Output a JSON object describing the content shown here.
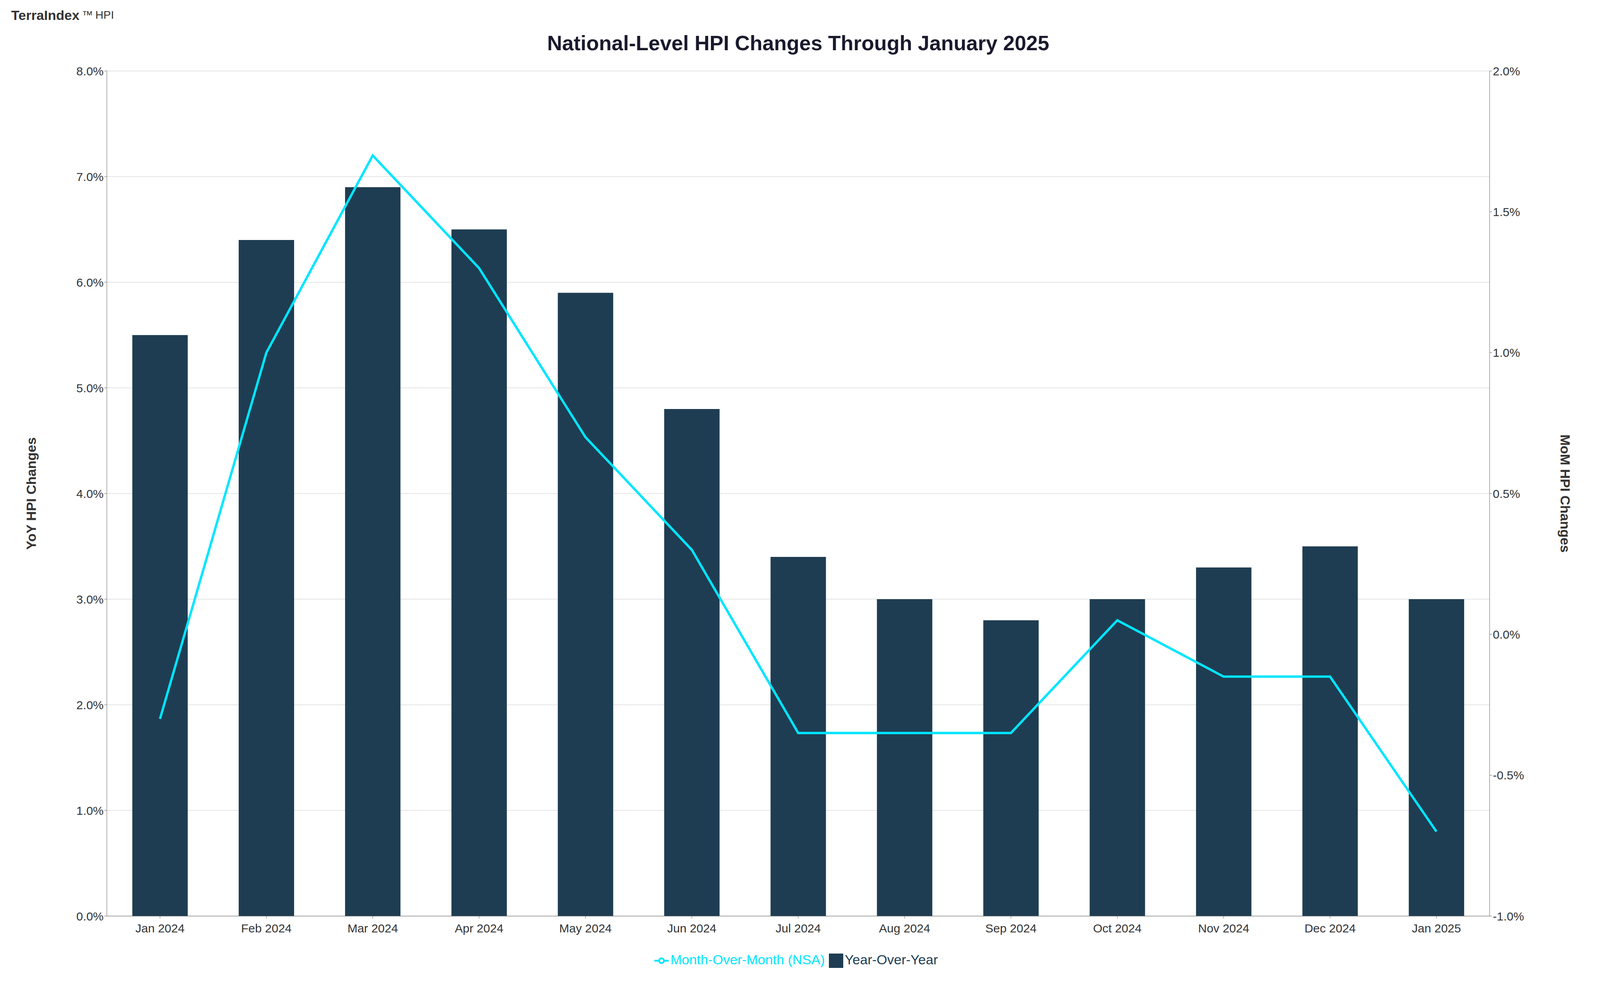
{
  "chart_data": {
    "type": "bar",
    "title": "National-Level HPI Changes Through January 2025",
    "annotations": [
      "TerraIndex",
      "™",
      "HPI"
    ],
    "y_label": "YoY HPI Changes",
    "y2_label": "MoM HPI Changes",
    "categories": [
      "Jan 2024",
      "Feb 2024",
      "Mar 2024",
      "Apr 2024",
      "May 2024",
      "Jun 2024",
      "Jul 2024",
      "Aug 2024",
      "Sep 2024",
      "Oct 2024",
      "Nov 2024",
      "Dec 2024",
      "Jan 2025"
    ],
    "series": [
      {
        "name": "Year-Over-Year",
        "type": "bar",
        "color": "#1e3d52",
        "values": [
          0.055,
          0.064,
          0.069,
          0.065,
          0.059,
          0.048,
          0.034,
          0.03,
          0.028,
          0.03,
          0.033,
          0.035,
          0.03
        ]
      },
      {
        "name": "Month-Over-Month (NSA)",
        "type": "line",
        "color": "#00e5ff",
        "axis": "y2",
        "values": [
          -0.003,
          0.01,
          0.017,
          0.013,
          0.007,
          0.003,
          -0.0035,
          -0.0035,
          -0.0035,
          0.0005,
          -0.0015,
          -0.0015,
          -0.007
        ]
      }
    ],
    "ylim": [
      0.0,
      0.08
    ],
    "yticks": [
      {
        "value": 0.0,
        "label": "0.0%"
      },
      {
        "value": 0.01,
        "label": "1.0%"
      },
      {
        "value": 0.02,
        "label": "2.0%"
      },
      {
        "value": 0.03,
        "label": "3.0%"
      },
      {
        "value": 0.04,
        "label": "4.0%"
      },
      {
        "value": 0.05,
        "label": "5.0%"
      },
      {
        "value": 0.06,
        "label": "6.0%"
      },
      {
        "value": 0.07,
        "label": "7.0%"
      },
      {
        "value": 0.08,
        "label": "8.0%"
      }
    ],
    "y2lim": [
      -0.01,
      0.02
    ],
    "y2ticks": [
      {
        "value": -0.01,
        "label": "-1.0%"
      },
      {
        "value": -0.005,
        "label": "-0.5%"
      },
      {
        "value": 0.0,
        "label": "0.0%"
      },
      {
        "value": 0.005,
        "label": "0.5%"
      },
      {
        "value": 0.01,
        "label": "1.0%"
      },
      {
        "value": 0.015,
        "label": "1.5%"
      },
      {
        "value": 0.02,
        "label": "2.0%"
      }
    ],
    "grid": true,
    "legend": "bottom"
  }
}
